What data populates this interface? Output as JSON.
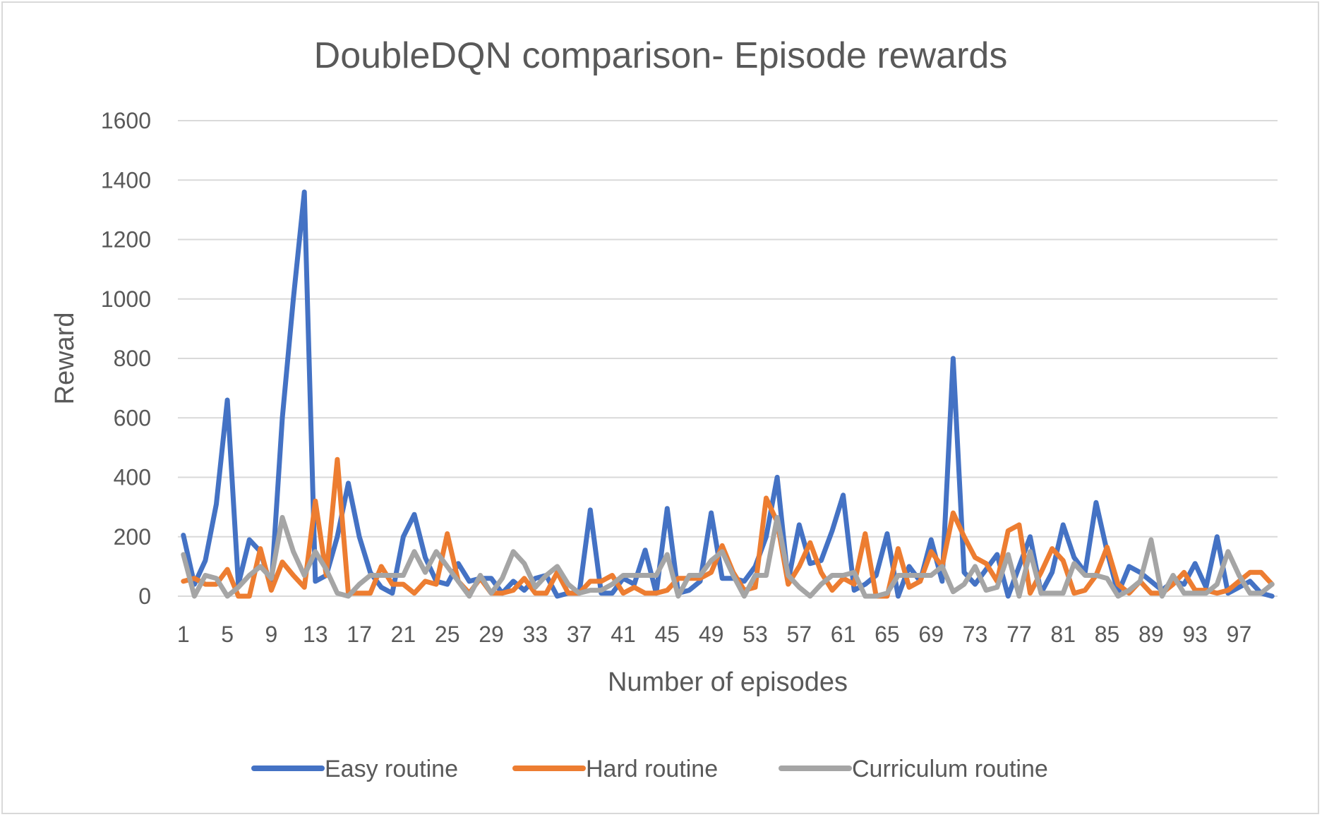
{
  "chart_data": {
    "type": "line",
    "title": "DoubleDQN comparison- Episode rewards",
    "xlabel": "Number of episodes",
    "ylabel": "Reward",
    "ylim": [
      0,
      1600
    ],
    "yticks": [
      "0",
      "200",
      "400",
      "600",
      "800",
      "1000",
      "1200",
      "1400",
      "1600"
    ],
    "xlim": [
      1,
      100
    ],
    "xticks": [
      "1",
      "5",
      "9",
      "13",
      "17",
      "21",
      "25",
      "29",
      "33",
      "37",
      "41",
      "45",
      "49",
      "53",
      "57",
      "61",
      "65",
      "69",
      "73",
      "77",
      "81",
      "85",
      "89",
      "93",
      "97"
    ],
    "grid": true,
    "legend": "bottom",
    "x": [
      1,
      2,
      3,
      4,
      5,
      6,
      7,
      8,
      9,
      10,
      11,
      12,
      13,
      14,
      15,
      16,
      17,
      18,
      19,
      20,
      21,
      22,
      23,
      24,
      25,
      26,
      27,
      28,
      29,
      30,
      31,
      32,
      33,
      34,
      35,
      36,
      37,
      38,
      39,
      40,
      41,
      42,
      43,
      44,
      45,
      46,
      47,
      48,
      49,
      50,
      51,
      52,
      53,
      54,
      55,
      56,
      57,
      58,
      59,
      60,
      61,
      62,
      63,
      64,
      65,
      66,
      67,
      68,
      69,
      70,
      71,
      72,
      73,
      74,
      75,
      76,
      77,
      78,
      79,
      80,
      81,
      82,
      83,
      84,
      85,
      86,
      87,
      88,
      89,
      90,
      91,
      92,
      93,
      94,
      95,
      96,
      97,
      98,
      99,
      100
    ],
    "series": [
      {
        "name": "Easy routine",
        "color": "#4472c4",
        "values": [
          205,
          40,
          120,
          310,
          660,
          40,
          190,
          150,
          30,
          600,
          1000,
          1360,
          50,
          70,
          200,
          380,
          200,
          80,
          30,
          10,
          200,
          275,
          130,
          50,
          40,
          110,
          50,
          60,
          60,
          10,
          50,
          20,
          60,
          70,
          0,
          10,
          10,
          290,
          10,
          10,
          60,
          40,
          155,
          10,
          295,
          10,
          20,
          50,
          280,
          60,
          60,
          50,
          100,
          200,
          400,
          50,
          240,
          110,
          120,
          220,
          340,
          20,
          40,
          70,
          210,
          0,
          100,
          50,
          190,
          50,
          800,
          80,
          40,
          90,
          140,
          0,
          100,
          200,
          10,
          80,
          240,
          130,
          80,
          315,
          150,
          10,
          100,
          80,
          50,
          20,
          50,
          40,
          110,
          30,
          200,
          10,
          30,
          50,
          10,
          0
        ]
      },
      {
        "name": "Hard routine",
        "color": "#ed7d31",
        "values": [
          50,
          60,
          40,
          40,
          90,
          0,
          0,
          160,
          20,
          115,
          70,
          30,
          320,
          70,
          460,
          10,
          10,
          10,
          100,
          40,
          40,
          10,
          50,
          40,
          210,
          50,
          10,
          60,
          10,
          10,
          20,
          60,
          10,
          10,
          80,
          10,
          10,
          50,
          50,
          70,
          10,
          30,
          10,
          10,
          20,
          60,
          60,
          60,
          80,
          170,
          80,
          20,
          30,
          330,
          250,
          40,
          100,
          180,
          80,
          20,
          60,
          40,
          210,
          0,
          0,
          160,
          30,
          50,
          150,
          100,
          280,
          200,
          130,
          110,
          50,
          220,
          240,
          10,
          80,
          160,
          120,
          10,
          20,
          70,
          165,
          40,
          10,
          50,
          10,
          10,
          40,
          80,
          20,
          20,
          10,
          20,
          50,
          80,
          80,
          40
        ]
      },
      {
        "name": "Curriculum routine",
        "color": "#a5a5a5",
        "values": [
          140,
          0,
          70,
          60,
          0,
          30,
          70,
          100,
          60,
          265,
          150,
          70,
          150,
          90,
          10,
          0,
          40,
          70,
          70,
          70,
          70,
          150,
          80,
          150,
          100,
          50,
          0,
          70,
          10,
          60,
          150,
          110,
          30,
          70,
          100,
          40,
          10,
          20,
          20,
          40,
          70,
          70,
          70,
          70,
          140,
          0,
          70,
          70,
          120,
          150,
          70,
          0,
          70,
          70,
          265,
          70,
          30,
          0,
          40,
          70,
          70,
          80,
          0,
          0,
          10,
          70,
          70,
          70,
          70,
          100,
          15,
          40,
          100,
          20,
          30,
          140,
          0,
          150,
          10,
          10,
          10,
          110,
          70,
          70,
          60,
          0,
          20,
          50,
          190,
          0,
          70,
          10,
          10,
          10,
          40,
          150,
          70,
          10,
          10,
          40
        ]
      }
    ]
  }
}
